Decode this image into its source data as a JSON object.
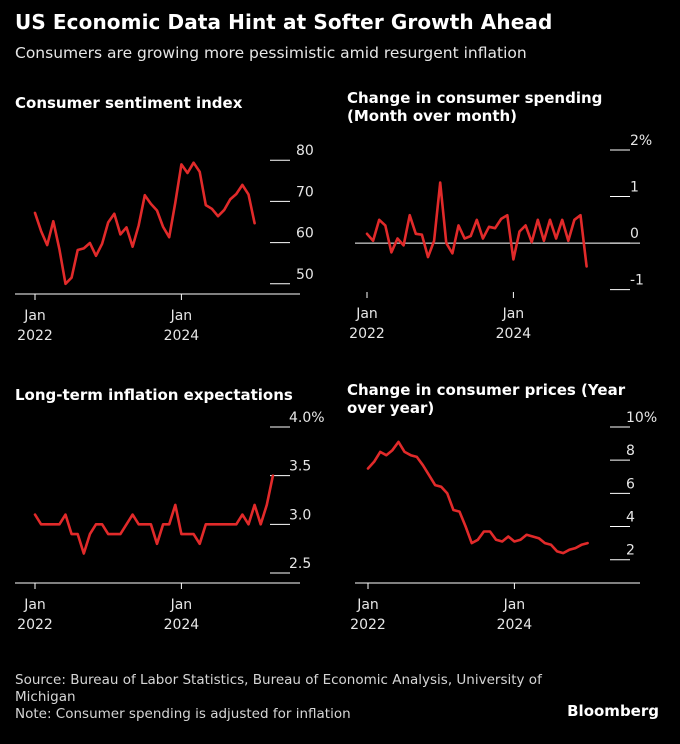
{
  "title": "US Economic Data Hint at Softer Growth Ahead",
  "subtitle": "Consumers are growing more pessimistic amid resurgent inflation",
  "footer": {
    "source": "Source: Bureau of Labor Statistics, Bureau of Economic Analysis, University of Michigan",
    "note": "Note: Consumer spending is adjusted for inflation"
  },
  "brand": "Bloomberg",
  "colors": {
    "line": "#e12a2a",
    "axis": "#ffffff",
    "background": "#000000"
  },
  "chart_data": [
    {
      "type": "line",
      "title": "Consumer sentiment index",
      "xlabel": "",
      "ylabel": "",
      "ylim": [
        48,
        82
      ],
      "yticks": [
        50,
        60,
        70,
        80
      ],
      "ytick_labels": [
        "50",
        "60",
        "70",
        "80"
      ],
      "xlim": [
        0,
        41
      ],
      "xticks": [
        {
          "x": 0,
          "label": [
            "Jan",
            "2022"
          ]
        },
        {
          "x": 24,
          "label": [
            "Jan",
            "2024"
          ]
        }
      ],
      "baseline": 48,
      "series": [
        {
          "name": "Consumer sentiment index",
          "x_start": 0,
          "values": [
            67.2,
            62.8,
            59.4,
            65.2,
            58.4,
            50.0,
            51.5,
            58.2,
            58.6,
            59.9,
            56.8,
            59.7,
            64.9,
            67.0,
            62.0,
            63.7,
            59.0,
            64.2,
            71.5,
            69.4,
            67.8,
            63.8,
            61.3,
            69.7,
            79.0,
            76.9,
            79.4,
            77.2,
            69.1,
            68.2,
            66.4,
            67.9,
            70.5,
            71.8,
            74.0,
            71.7,
            64.7
          ]
        }
      ]
    },
    {
      "type": "line",
      "title": "Change in consumer spending (Month over month)",
      "xlabel": "",
      "ylabel": "",
      "ylim": [
        -1.05,
        2.0
      ],
      "yticks": [
        -1,
        0,
        1,
        2
      ],
      "ytick_labels": [
        "-1",
        "0",
        "1",
        "2%"
      ],
      "xlim": [
        0,
        41
      ],
      "xticks": [
        {
          "x": 0,
          "label": [
            "Jan",
            "2022"
          ]
        },
        {
          "x": 24,
          "label": [
            "Jan",
            "2024"
          ]
        }
      ],
      "baseline": 0,
      "series": [
        {
          "name": "Change in consumer spending",
          "x_start": 0,
          "values": [
            0.2,
            0.05,
            0.5,
            0.38,
            -0.2,
            0.1,
            -0.05,
            0.6,
            0.2,
            0.18,
            -0.3,
            0.05,
            1.3,
            0.0,
            -0.22,
            0.38,
            0.1,
            0.15,
            0.5,
            0.1,
            0.35,
            0.32,
            0.52,
            0.6,
            -0.35,
            0.25,
            0.38,
            0.02,
            0.5,
            0.05,
            0.5,
            0.1,
            0.5,
            0.05,
            0.5,
            0.6,
            -0.5
          ]
        }
      ]
    },
    {
      "type": "line",
      "title": "Long-term inflation expectations",
      "xlabel": "",
      "ylabel": "",
      "ylim": [
        2.5,
        4.0
      ],
      "yticks": [
        2.5,
        3.0,
        3.5,
        4.0
      ],
      "ytick_labels": [
        "2.5",
        "3.0",
        "3.5",
        "4.0%"
      ],
      "xlim": [
        0,
        41
      ],
      "xticks": [
        {
          "x": 0,
          "label": [
            "Jan",
            "2022"
          ]
        },
        {
          "x": 24,
          "label": [
            "Jan",
            "2024"
          ]
        }
      ],
      "baseline": 2.4,
      "series": [
        {
          "name": "Long-term inflation expectations",
          "x_start": 0,
          "values": [
            3.1,
            3.0,
            3.0,
            3.0,
            3.0,
            3.1,
            2.9,
            2.9,
            2.7,
            2.9,
            3.0,
            3.0,
            2.9,
            2.9,
            2.9,
            3.0,
            3.1,
            3.0,
            3.0,
            3.0,
            2.8,
            3.0,
            3.0,
            3.2,
            2.9,
            2.9,
            2.9,
            2.8,
            3.0,
            3.0,
            3.0,
            3.0,
            3.0,
            3.0,
            3.1,
            3.0,
            3.2,
            3.0,
            3.2,
            3.5
          ]
        }
      ]
    },
    {
      "type": "line",
      "title": "Change in consumer prices (Year over year)",
      "xlabel": "",
      "ylabel": "",
      "ylim": [
        1.2,
        10.0
      ],
      "yticks": [
        2,
        4,
        6,
        8,
        10
      ],
      "ytick_labels": [
        "2",
        "4",
        "6",
        "8",
        "10%"
      ],
      "xlim": [
        0,
        41
      ],
      "xticks": [
        {
          "x": 0,
          "label": [
            "Jan",
            "2022"
          ]
        },
        {
          "x": 24,
          "label": [
            "Jan",
            "2024"
          ]
        }
      ],
      "baseline": 1.2,
      "series": [
        {
          "name": "Change in consumer prices",
          "x_start": 0,
          "values": [
            7.5,
            7.9,
            8.5,
            8.3,
            8.6,
            9.1,
            8.5,
            8.3,
            8.2,
            7.7,
            7.1,
            6.5,
            6.4,
            6.0,
            5.0,
            4.9,
            4.0,
            3.0,
            3.2,
            3.7,
            3.7,
            3.2,
            3.1,
            3.4,
            3.1,
            3.2,
            3.5,
            3.4,
            3.3,
            3.0,
            2.9,
            2.5,
            2.4,
            2.6,
            2.7,
            2.9,
            3.0
          ]
        }
      ]
    }
  ]
}
